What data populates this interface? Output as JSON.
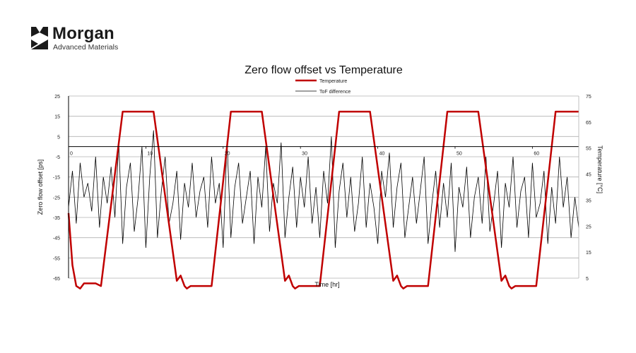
{
  "logo": {
    "name": "Morgan",
    "subtitle": "Advanced Materials",
    "brand_color": "#1a1a1a"
  },
  "chart_data": {
    "type": "line",
    "title": "Zero flow offset vs Temperature",
    "xlabel": "Time [hr]",
    "ylabel_left": "Zero flow offset [ps]",
    "ylabel_right": "Temperature [°C]",
    "xlim": [
      0,
      66
    ],
    "ylim_left": [
      -65,
      25
    ],
    "ylim_right": [
      5,
      75
    ],
    "x_ticks": [
      "0",
      "10",
      "20",
      "30",
      "40",
      "50",
      "60"
    ],
    "y_ticks_left": [
      "25",
      "15",
      "5",
      "-5",
      "-15",
      "-25",
      "-35",
      "-45",
      "-55",
      "-65"
    ],
    "y_ticks_right": [
      "75",
      "65",
      "55",
      "45",
      "35",
      "25",
      "15",
      "5"
    ],
    "grid": true,
    "legend_position": "top-center",
    "colors": {
      "temperature": "#c00000",
      "tof_difference": "#000000",
      "grid": "#b0b0b0",
      "axis": "#000000"
    },
    "series": [
      {
        "name": "Temperature",
        "axis": "right",
        "x": [
          0,
          0.5,
          1.0,
          1.5,
          2.0,
          3.5,
          4.2,
          7.0,
          11.0,
          14.0,
          14.5,
          15.0,
          15.3,
          15.8,
          16.5,
          18.5,
          21.0,
          25.0,
          28.0,
          28.5,
          29.0,
          29.3,
          29.8,
          30.5,
          32.5,
          35.0,
          39.0,
          42.0,
          42.5,
          43.0,
          43.3,
          43.8,
          44.5,
          46.5,
          49.0,
          53.0,
          56.0,
          56.5,
          57.0,
          57.3,
          57.8,
          58.5,
          60.5,
          63.0,
          66.0
        ],
        "y": [
          30,
          10,
          2,
          1,
          3,
          3,
          2,
          69,
          69,
          4,
          6,
          2,
          1,
          2,
          2,
          2,
          69,
          69,
          4,
          6,
          2,
          1,
          2,
          2,
          2,
          69,
          69,
          4,
          6,
          2,
          1,
          2,
          2,
          2,
          69,
          69,
          4,
          6,
          2,
          1,
          2,
          2,
          2,
          69,
          69
        ]
      },
      {
        "name": "ToF difference",
        "axis": "left",
        "x": [
          0.0,
          0.5,
          1.0,
          1.5,
          2.0,
          2.5,
          3.0,
          3.5,
          4.0,
          4.5,
          5.0,
          5.5,
          6.0,
          6.5,
          7.0,
          7.5,
          8.0,
          8.5,
          9.0,
          9.5,
          10.0,
          10.5,
          11.0,
          11.5,
          12.0,
          12.5,
          13.0,
          13.5,
          14.0,
          14.5,
          15.0,
          15.5,
          16.0,
          16.5,
          17.0,
          17.5,
          18.0,
          18.5,
          19.0,
          19.5,
          20.0,
          20.5,
          21.0,
          21.5,
          22.0,
          22.5,
          23.0,
          23.5,
          24.0,
          24.5,
          25.0,
          25.5,
          26.0,
          26.5,
          27.0,
          27.5,
          28.0,
          28.5,
          29.0,
          29.5,
          30.0,
          30.5,
          31.0,
          31.5,
          32.0,
          32.5,
          33.0,
          33.5,
          34.0,
          34.5,
          35.0,
          35.5,
          36.0,
          36.5,
          37.0,
          37.5,
          38.0,
          38.5,
          39.0,
          39.5,
          40.0,
          40.5,
          41.0,
          41.5,
          42.0,
          42.5,
          43.0,
          43.5,
          44.0,
          44.5,
          45.0,
          45.5,
          46.0,
          46.5,
          47.0,
          47.5,
          48.0,
          48.5,
          49.0,
          49.5,
          50.0,
          50.5,
          51.0,
          51.5,
          52.0,
          52.5,
          53.0,
          53.5,
          54.0,
          54.5,
          55.0,
          55.5,
          56.0,
          56.5,
          57.0,
          57.5,
          58.0,
          58.5,
          59.0,
          59.5,
          60.0,
          60.5,
          61.0,
          61.5,
          62.0,
          62.5,
          63.0,
          63.5,
          64.0,
          64.5,
          65.0,
          65.5,
          66.0
        ],
        "y": [
          -30,
          -12,
          -38,
          -8,
          -25,
          -18,
          -32,
          -5,
          -40,
          -15,
          -28,
          -10,
          -35,
          2,
          -48,
          -20,
          -8,
          -42,
          -25,
          0,
          -50,
          -15,
          8,
          -45,
          -22,
          -5,
          -38,
          -28,
          -12,
          -46,
          -18,
          -30,
          -8,
          -35,
          -22,
          -15,
          -40,
          -5,
          -28,
          -18,
          -50,
          3,
          -45,
          -20,
          -8,
          -38,
          -25,
          -12,
          -48,
          -15,
          -30,
          0,
          -42,
          -18,
          -28,
          2,
          -45,
          -25,
          -10,
          -40,
          -15,
          -30,
          -5,
          -38,
          -20,
          -45,
          -12,
          -28,
          5,
          -50,
          -22,
          -8,
          -35,
          -15,
          -42,
          -28,
          -5,
          -40,
          -18,
          -30,
          -48,
          -12,
          -25,
          -3,
          -40,
          -20,
          -8,
          -45,
          -30,
          -15,
          -38,
          -22,
          -5,
          -48,
          -28,
          -12,
          -40,
          -18,
          -35,
          -8,
          -52,
          -20,
          -30,
          -10,
          -45,
          -25,
          -15,
          -38,
          -5,
          -42,
          -28,
          -12,
          -50,
          -18,
          -30,
          -5,
          -40,
          -22,
          -15,
          -45,
          -8,
          -35,
          -28,
          -12,
          -48,
          -20,
          -38,
          -5,
          -30,
          -15,
          -45,
          -25,
          -40
        ]
      }
    ]
  }
}
